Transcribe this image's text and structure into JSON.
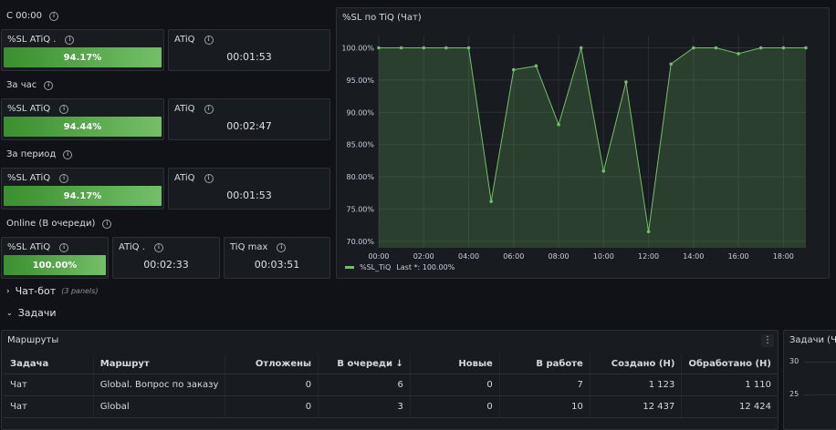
{
  "sections": {
    "since_midnight": "С 00:00",
    "last_hour": "За час",
    "period": "За период",
    "online": "Online (В очереди)"
  },
  "stats": {
    "since_midnight": {
      "sl_label": "%SL ATiQ .",
      "sl_value": "94.17%",
      "sl_fraction": 0.9417,
      "atiq_label": "ATiQ",
      "atiq_value": "00:01:53"
    },
    "last_hour": {
      "sl_label": "%SL ATiQ",
      "sl_value": "94.44%",
      "sl_fraction": 0.9444,
      "atiq_label": "ATiQ",
      "atiq_value": "00:02:47"
    },
    "period": {
      "sl_label": "%SL ATiQ",
      "sl_value": "94.17%",
      "sl_fraction": 0.9417,
      "atiq_label": "ATiQ",
      "atiq_value": "00:01:53"
    },
    "online": {
      "sl_label": "%SL ATiQ",
      "sl_value": "100.00%",
      "sl_fraction": 1.0,
      "atiq_label": "ATiQ .",
      "atiq_value": "00:02:33",
      "tiq_label": "TiQ max",
      "tiq_value": "00:03:51"
    }
  },
  "chart_panel": {
    "title": "%SL по TiQ (Чат)",
    "legend_name": "%SL_TiQ",
    "legend_last": "Last *: 100.00%",
    "series_color": "#73bf69"
  },
  "chart_data": {
    "type": "area",
    "title": "%SL по TiQ (Чат)",
    "x_ticks": [
      "00:00",
      "02:00",
      "04:00",
      "06:00",
      "08:00",
      "10:00",
      "12:00",
      "14:00",
      "16:00",
      "18:00"
    ],
    "y_ticks": [
      "100.00%",
      "95.00%",
      "90.00%",
      "85.00%",
      "80.00%",
      "75.00%",
      "70.00%"
    ],
    "ylim": [
      69,
      100.5
    ],
    "xlim": [
      0,
      19
    ],
    "grid": true,
    "legend_position": "bottom-left",
    "series": [
      {
        "name": "%SL_TiQ",
        "x": [
          0,
          1,
          2,
          3,
          4,
          5,
          6,
          7,
          8,
          9,
          10,
          11,
          12,
          13,
          14,
          15,
          16,
          17,
          18,
          19
        ],
        "values": [
          100,
          100,
          100,
          100,
          100,
          76.2,
          96.6,
          97.2,
          88.1,
          100,
          80.9,
          94.7,
          71.5,
          97.5,
          100,
          100,
          99.1,
          100,
          100,
          100
        ]
      }
    ]
  },
  "rows": {
    "chatbot": {
      "label": "Чат-бот",
      "meta": "(3 panels)"
    },
    "tasks": {
      "label": "Задачи"
    }
  },
  "routes_panel": {
    "title": "Маршруты",
    "menu_icon": "dots-vertical-icon",
    "columns": [
      "Задача",
      "Маршрут",
      "Отложены",
      "В очереди",
      "Новые",
      "В работе",
      "Создано (Н)",
      "Обработано (Н)"
    ],
    "sort_indicator": "↓",
    "rows": [
      [
        "Чат",
        "Global. Вопрос по заказу",
        "0",
        "6",
        "0",
        "7",
        "1 123",
        "1 110"
      ],
      [
        "Чат",
        "Global",
        "0",
        "3",
        "0",
        "10",
        "12 437",
        "12 424"
      ]
    ]
  },
  "tasks_panel": {
    "title": "Задачи (Ча",
    "y_ticks": [
      "30",
      "25"
    ]
  }
}
